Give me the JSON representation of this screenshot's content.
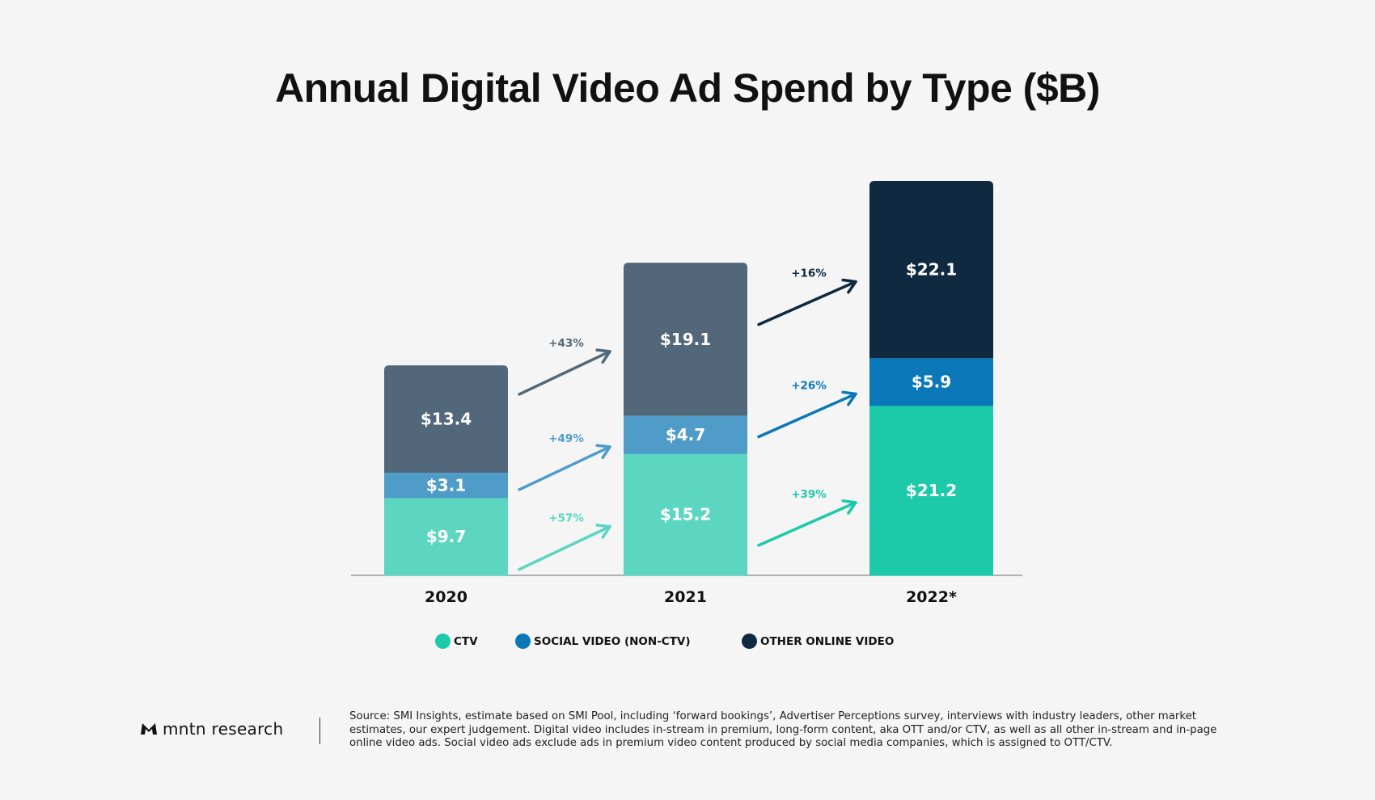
{
  "chart_data": {
    "type": "bar",
    "stacked": true,
    "title": "Annual Digital Video Ad Spend by Type ($B)",
    "categories": [
      "2020",
      "2021",
      "2022*"
    ],
    "series": [
      {
        "name": "CTV",
        "values": [
          9.7,
          15.2,
          21.2
        ],
        "labels": [
          "$9.7",
          "$15.2",
          "$21.2"
        ],
        "colors": [
          "#5cd6c0",
          "#5cd6c0",
          "#1ccaaa"
        ],
        "growth": [
          "+57%",
          "+39%"
        ]
      },
      {
        "name": "SOCIAL VIDEO (NON-CTV)",
        "values": [
          3.1,
          4.7,
          5.9
        ],
        "labels": [
          "$3.1",
          "$4.7",
          "$5.9"
        ],
        "colors": [
          "#4f9cc9",
          "#4f9cc9",
          "#0a78b8"
        ],
        "growth": [
          "+49%",
          "+26%"
        ]
      },
      {
        "name": "OTHER ONLINE VIDEO",
        "values": [
          13.4,
          19.1,
          22.1
        ],
        "labels": [
          "$13.4",
          "$19.1",
          "$22.1"
        ],
        "colors": [
          "#52687a",
          "#52687a",
          "#0f2a40"
        ],
        "growth": [
          "+43%",
          "+16%"
        ]
      }
    ],
    "legend_colors": [
      "#1ccaaa",
      "#0a78b8",
      "#0f2a40"
    ],
    "legend_position": "bottom",
    "grid": false,
    "xlabel": "",
    "ylabel": ""
  },
  "footer": {
    "logo_text": "mntn research",
    "source": "Source: SMI Insights, estimate based on SMI Pool, including ‘forward bookings’, Advertiser Perceptions survey, interviews with industry leaders, other market estimates, our expert judgement. Digital video includes in-stream in premium, long-form content, aka OTT and/or CTV, as well as all other in-stream and in-page online video ads. Social video ads exclude ads in premium video content produced by social media companies, which is assigned to OTT/CTV."
  }
}
